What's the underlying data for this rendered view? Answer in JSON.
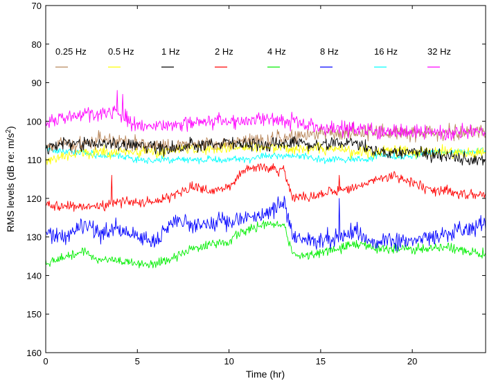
{
  "chart_data": {
    "type": "line",
    "title": "",
    "xlabel": "Time (hr)",
    "ylabel_main": "RMS levels (dB re: m/s",
    "ylabel_sup": "2",
    "ylabel_end": ")",
    "xlim": [
      0,
      24
    ],
    "ylim": [
      70,
      160
    ],
    "y_inverted": true,
    "grid": false,
    "legend_placement": "top, horizontal",
    "xticks": [
      0,
      5,
      10,
      15,
      20
    ],
    "xtick_labels": [
      "0",
      "5",
      "10",
      "15",
      "20"
    ],
    "yticks": [
      70,
      80,
      90,
      100,
      110,
      120,
      130,
      140,
      150,
      160
    ],
    "ytick_labels": [
      "70",
      "80",
      "90",
      "100",
      "110",
      "120",
      "130",
      "140",
      "150",
      "160"
    ],
    "x": [
      0,
      1,
      2,
      3,
      3.6,
      4,
      5,
      6,
      7,
      8,
      9,
      10,
      11,
      12,
      13,
      13.5,
      14,
      15,
      16,
      17,
      17.5,
      18,
      19,
      20,
      21,
      22,
      23,
      24
    ],
    "series": [
      {
        "name": "0.25 Hz",
        "color": "#b8865a",
        "noise": 1.5,
        "values": [
          107,
          106,
          106,
          105,
          105,
          105,
          106,
          106,
          106,
          106,
          106,
          106,
          105,
          105,
          104,
          104,
          104,
          103,
          103,
          103,
          103,
          103,
          103,
          103,
          103,
          103,
          103,
          103
        ]
      },
      {
        "name": "0.5 Hz",
        "color": "#ffff00",
        "noise": 1.2,
        "values": [
          110,
          109,
          108,
          108,
          108,
          108,
          108,
          108,
          107,
          107,
          107,
          107,
          107,
          107,
          107,
          107,
          107,
          107,
          107,
          108,
          108,
          108,
          108,
          108,
          108,
          108,
          108,
          108
        ]
      },
      {
        "name": "1 Hz",
        "color": "#000000",
        "noise": 1.3,
        "values": [
          107,
          106,
          106,
          106,
          106,
          106,
          106,
          107,
          107,
          106,
          106,
          106,
          106,
          106,
          106,
          106,
          106,
          106,
          106,
          106,
          107,
          108,
          108,
          108,
          109,
          109,
          110,
          110
        ]
      },
      {
        "name": "2 Hz",
        "color": "#ff0000",
        "noise": 1.0,
        "values": [
          122,
          122,
          122,
          122,
          121,
          121,
          121,
          121,
          119,
          117,
          118,
          117,
          112,
          112,
          113,
          120,
          120,
          119,
          118,
          117,
          116,
          115,
          114,
          116,
          118,
          118,
          119,
          119
        ]
      },
      {
        "name": "4 Hz",
        "color": "#00ee00",
        "noise": 1.0,
        "values": [
          137,
          135,
          134,
          136,
          136,
          136,
          137,
          137,
          135,
          133,
          132,
          131,
          128,
          127,
          127,
          135,
          135,
          134,
          133,
          132,
          132,
          133,
          133,
          133,
          133,
          133,
          134,
          134
        ]
      },
      {
        "name": "8 Hz",
        "color": "#0000ff",
        "noise": 1.8,
        "values": [
          129,
          130,
          127,
          129,
          128,
          128,
          130,
          131,
          126,
          127,
          127,
          126,
          125,
          124,
          121,
          130,
          131,
          131,
          130,
          129,
          131,
          131,
          131,
          131,
          130,
          129,
          128,
          126
        ]
      },
      {
        "name": "16 Hz",
        "color": "#00ffff",
        "noise": 0.7,
        "values": [
          107,
          108,
          108,
          109,
          109,
          109,
          110,
          110,
          110,
          110,
          110,
          110,
          110,
          109,
          109,
          109,
          109,
          110,
          110,
          110,
          110,
          109,
          109,
          109,
          108,
          108,
          108,
          108
        ]
      },
      {
        "name": "32 Hz",
        "color": "#ff00ff",
        "noise": 1.5,
        "values": [
          100,
          99,
          98,
          98,
          97,
          98,
          101,
          101,
          101,
          100,
          100,
          100,
          100,
          99,
          100,
          100,
          101,
          102,
          102,
          102,
          102,
          103,
          103,
          103,
          103,
          103,
          103,
          103
        ]
      }
    ],
    "spikes": [
      {
        "series": "2 Hz",
        "x": 3.6,
        "y": 114
      },
      {
        "series": "2 Hz",
        "x": 16.0,
        "y": 114
      },
      {
        "series": "2 Hz",
        "x": 19.0,
        "y": 113
      },
      {
        "series": "8 Hz",
        "x": 16.0,
        "y": 120
      },
      {
        "series": "32 Hz",
        "x": 3.9,
        "y": 92
      },
      {
        "series": "32 Hz",
        "x": 4.2,
        "y": 93
      }
    ]
  }
}
